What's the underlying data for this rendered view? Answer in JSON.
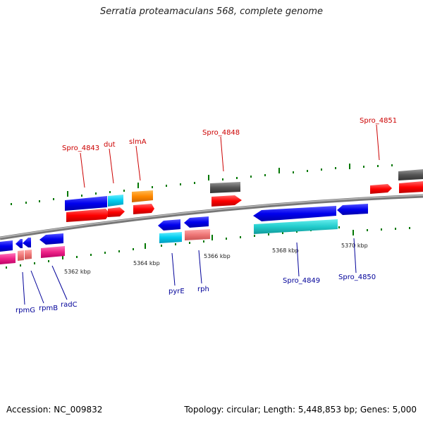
{
  "title": "Serratia proteamaculans 568, complete genome",
  "accession": "Accession: NC_009832",
  "topology": "Topology: circular; Length: 5,448,853 bp; Genes: 5,000",
  "ticks": [
    "5362 kbp",
    "5364 kbp",
    "5366 kbp",
    "5368 kbp",
    "5370 kbp"
  ],
  "genes_top": [
    "Spro_4843",
    "dut",
    "slmA",
    "Spro_4848",
    "Spro_4851"
  ],
  "genes_bottom": [
    "rpmG",
    "rpmB",
    "radC",
    "pyrE",
    "rph",
    "Spro_4849",
    "Spro_4850"
  ],
  "colors": {
    "red": "#ff0000",
    "blue": "#0000ee",
    "cyan": "#00ccdd",
    "orange": "#ff8800",
    "gray": "#555555",
    "pink": "#ee6688",
    "magenta": "#ee2288",
    "teal": "#22cccc",
    "tick": "#007700"
  }
}
